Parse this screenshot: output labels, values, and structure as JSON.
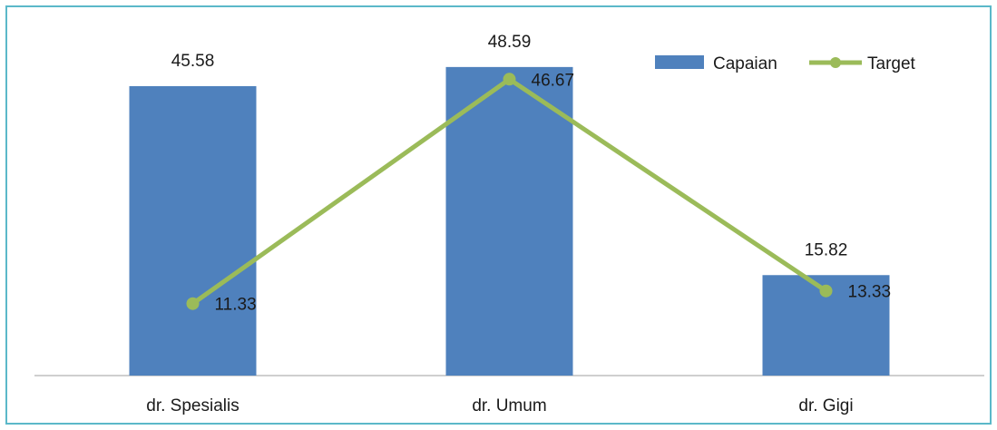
{
  "chart_data": {
    "type": "bar",
    "categories": [
      "dr. Spesialis",
      "dr. Umum",
      "dr. Gigi"
    ],
    "series": [
      {
        "name": "Capaian",
        "kind": "bar",
        "color": "#4f81bd",
        "values": [
          45.58,
          48.59,
          15.82
        ]
      },
      {
        "name": "Target",
        "kind": "line",
        "color": "#9bbb59",
        "values": [
          11.33,
          46.67,
          13.33
        ]
      }
    ],
    "title": "",
    "xlabel": "",
    "ylabel": "",
    "ylim": [
      0,
      55
    ],
    "grid": false,
    "legend_position": "top-right"
  }
}
